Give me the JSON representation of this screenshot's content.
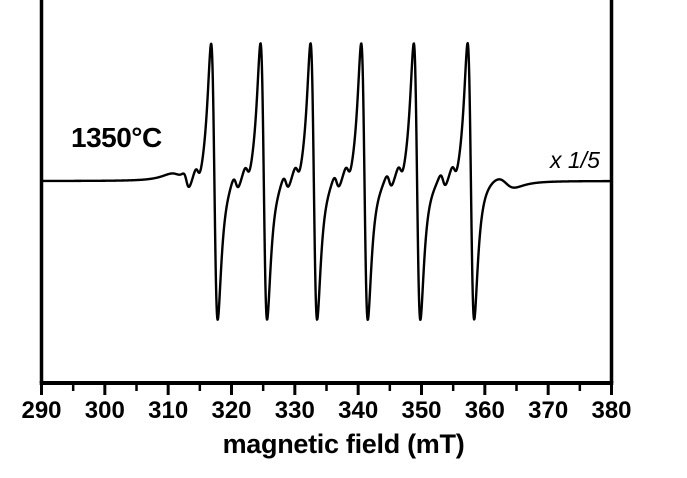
{
  "figure": {
    "background": "#ffffff",
    "ink_color": "#000000",
    "temperature_label": "1350°C",
    "scale_label": "x 1/5",
    "xlabel": "magnetic field (mT)"
  },
  "chart_data": {
    "type": "line",
    "title": "",
    "description": "EPR first-derivative spectrum: Mn2+ hyperfine sextet, sample annealed at 1350°C, trace scaled by 1/5",
    "xlabel": "magnetic field (mT)",
    "ylabel": "",
    "xlim": [
      290,
      380
    ],
    "grid": false,
    "x_major_ticks": [
      290,
      300,
      310,
      320,
      330,
      340,
      350,
      360,
      370,
      380
    ],
    "x_minor_ticks": [
      295,
      305,
      315,
      325,
      335,
      345,
      355,
      365,
      375
    ],
    "annotations": [
      {
        "text": "1350°C",
        "style": "bold",
        "x_mT": 295
      },
      {
        "text": "x 1/5",
        "style": "italic",
        "x_mT": 372
      }
    ],
    "series": [
      {
        "name": "EPR signal (x 1/5)",
        "lineshape": "first-derivative Lorentzian sextet",
        "line_centers_mT": [
          317.3,
          325.1,
          333.0,
          341.0,
          349.3,
          357.8
        ],
        "peak_maxima_mT": [
          316.8,
          324.5,
          332.4,
          340.4,
          348.8,
          357.4
        ],
        "peak_minima_mT": [
          317.9,
          325.7,
          333.5,
          341.6,
          349.9,
          358.4
        ],
        "hyperfine_splitting_mT": 8.1,
        "line_width_mT": 0.9,
        "relative_amplitude": 1.0,
        "satellite_offsets_mT": [
          -4.4,
          -2.6
        ],
        "satellite_amplitude": 0.055,
        "satellite_width_mT": 0.8,
        "edge_features": [
          {
            "center_mT": 311.8,
            "width_mT": 2.5,
            "amplitude": 0.04
          },
          {
            "center_mT": 363.3,
            "width_mT": 2.5,
            "amplitude": 0.04
          }
        ]
      }
    ]
  }
}
